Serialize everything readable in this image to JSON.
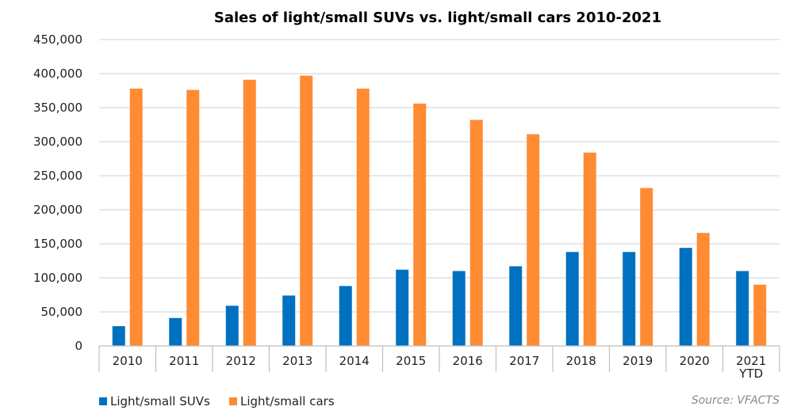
{
  "chart_data": {
    "type": "bar",
    "title": "Sales of light/small SUVs vs. light/small cars 2010-2021",
    "categories": [
      "2010",
      "2011",
      "2012",
      "2013",
      "2014",
      "2015",
      "2016",
      "2017",
      "2018",
      "2019",
      "2020",
      "2021\nYTD"
    ],
    "series": [
      {
        "name": "Light/small SUVs",
        "color": "#0070C0",
        "values": [
          29000,
          41000,
          59000,
          74000,
          88000,
          112000,
          110000,
          117000,
          138000,
          138000,
          144000,
          110000
        ]
      },
      {
        "name": "Light/small cars",
        "color": "#FF8B33",
        "values": [
          378000,
          376000,
          391000,
          397000,
          378000,
          356000,
          332000,
          311000,
          284000,
          232000,
          166000,
          90000
        ]
      }
    ],
    "ylim": [
      0,
      450000
    ],
    "yticks": [
      "0",
      "50,000",
      "100,000",
      "150,000",
      "200,000",
      "250,000",
      "300,000",
      "350,000",
      "400,000",
      "450,000"
    ],
    "grid": true,
    "legend_position": "bottom-left",
    "source": "Source: VFACTS"
  }
}
